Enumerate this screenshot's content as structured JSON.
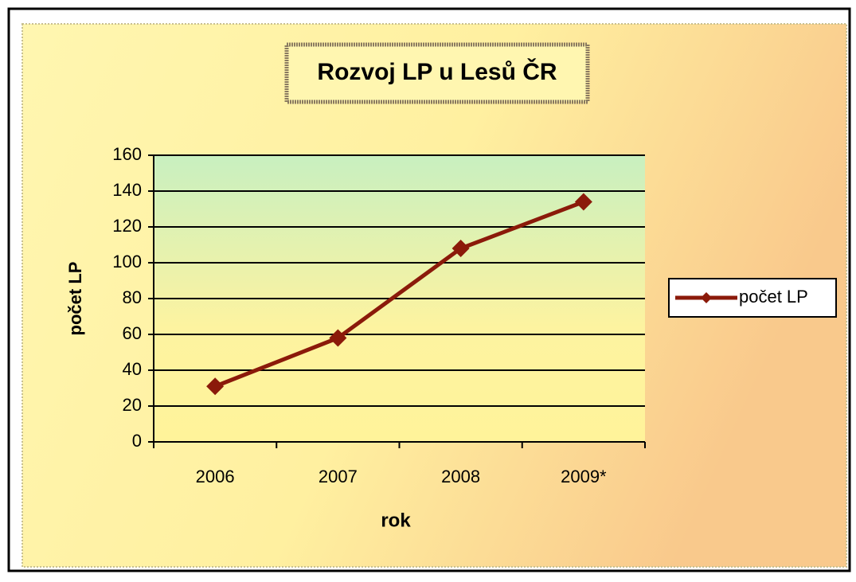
{
  "chart_data": {
    "type": "line",
    "title": "Rozvoj LP u Lesů ČR",
    "x_label": "rok",
    "y_label": "počet LP",
    "categories": [
      "2006",
      "2007",
      "2008",
      "2009*"
    ],
    "series": [
      {
        "name": "počet LP",
        "color": "#8b1a0a",
        "values": [
          31,
          58,
          108,
          134
        ]
      }
    ],
    "ylim": [
      0,
      160
    ],
    "yticks": [
      0,
      20,
      40,
      60,
      80,
      100,
      120,
      140,
      160
    ],
    "grid": true,
    "legend": "right"
  }
}
